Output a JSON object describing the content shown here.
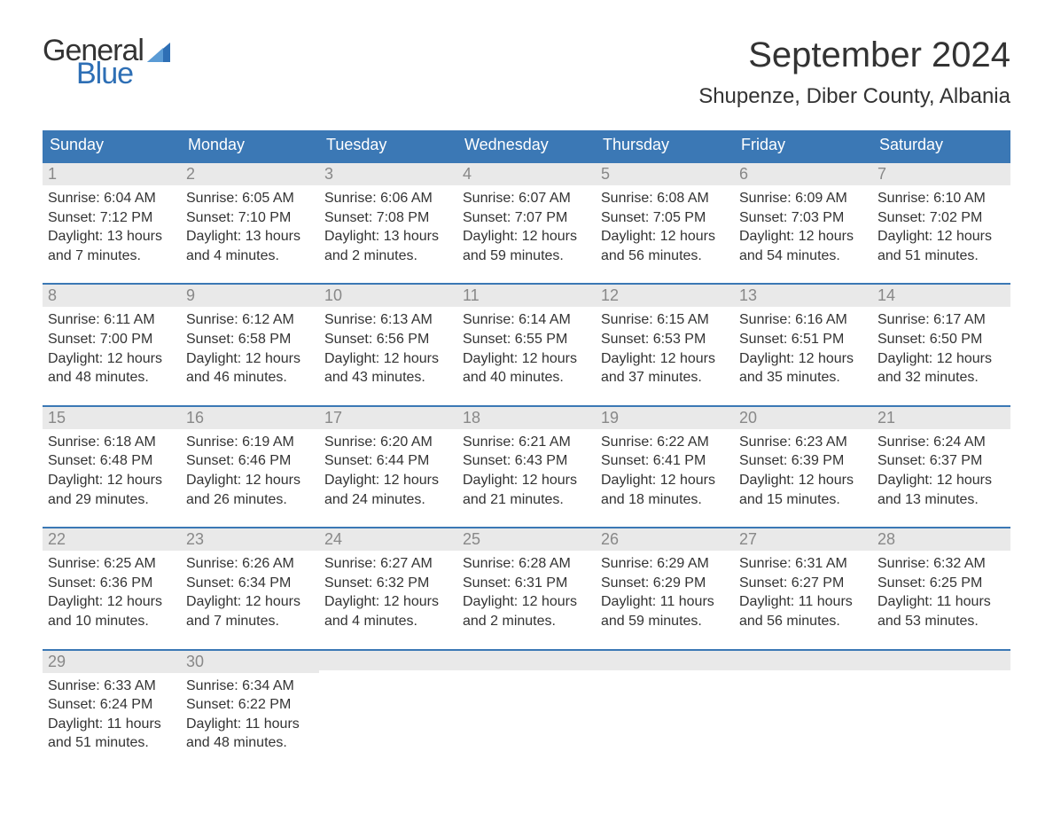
{
  "logo": {
    "text_top": "General",
    "text_bottom": "Blue",
    "flag_color": "#2e6fb5"
  },
  "header": {
    "month_title": "September 2024",
    "location": "Shupenze, Diber County, Albania"
  },
  "colors": {
    "header_bg": "#3b78b5",
    "header_text": "#ffffff",
    "daynum_bg": "#e9e9e9",
    "daynum_text": "#888888",
    "body_text": "#333333",
    "week_border": "#3b78b5",
    "logo_blue": "#2e6fb5",
    "background": "#ffffff"
  },
  "typography": {
    "month_title_fontsize": 40,
    "location_fontsize": 24,
    "dow_fontsize": 18,
    "daynum_fontsize": 18,
    "body_fontsize": 16
  },
  "layout": {
    "columns": 7,
    "cell_padding": 6
  },
  "days_of_week": [
    "Sunday",
    "Monday",
    "Tuesday",
    "Wednesday",
    "Thursday",
    "Friday",
    "Saturday"
  ],
  "weeks": [
    [
      {
        "num": "1",
        "sunrise": "Sunrise: 6:04 AM",
        "sunset": "Sunset: 7:12 PM",
        "dl1": "Daylight: 13 hours",
        "dl2": "and 7 minutes."
      },
      {
        "num": "2",
        "sunrise": "Sunrise: 6:05 AM",
        "sunset": "Sunset: 7:10 PM",
        "dl1": "Daylight: 13 hours",
        "dl2": "and 4 minutes."
      },
      {
        "num": "3",
        "sunrise": "Sunrise: 6:06 AM",
        "sunset": "Sunset: 7:08 PM",
        "dl1": "Daylight: 13 hours",
        "dl2": "and 2 minutes."
      },
      {
        "num": "4",
        "sunrise": "Sunrise: 6:07 AM",
        "sunset": "Sunset: 7:07 PM",
        "dl1": "Daylight: 12 hours",
        "dl2": "and 59 minutes."
      },
      {
        "num": "5",
        "sunrise": "Sunrise: 6:08 AM",
        "sunset": "Sunset: 7:05 PM",
        "dl1": "Daylight: 12 hours",
        "dl2": "and 56 minutes."
      },
      {
        "num": "6",
        "sunrise": "Sunrise: 6:09 AM",
        "sunset": "Sunset: 7:03 PM",
        "dl1": "Daylight: 12 hours",
        "dl2": "and 54 minutes."
      },
      {
        "num": "7",
        "sunrise": "Sunrise: 6:10 AM",
        "sunset": "Sunset: 7:02 PM",
        "dl1": "Daylight: 12 hours",
        "dl2": "and 51 minutes."
      }
    ],
    [
      {
        "num": "8",
        "sunrise": "Sunrise: 6:11 AM",
        "sunset": "Sunset: 7:00 PM",
        "dl1": "Daylight: 12 hours",
        "dl2": "and 48 minutes."
      },
      {
        "num": "9",
        "sunrise": "Sunrise: 6:12 AM",
        "sunset": "Sunset: 6:58 PM",
        "dl1": "Daylight: 12 hours",
        "dl2": "and 46 minutes."
      },
      {
        "num": "10",
        "sunrise": "Sunrise: 6:13 AM",
        "sunset": "Sunset: 6:56 PM",
        "dl1": "Daylight: 12 hours",
        "dl2": "and 43 minutes."
      },
      {
        "num": "11",
        "sunrise": "Sunrise: 6:14 AM",
        "sunset": "Sunset: 6:55 PM",
        "dl1": "Daylight: 12 hours",
        "dl2": "and 40 minutes."
      },
      {
        "num": "12",
        "sunrise": "Sunrise: 6:15 AM",
        "sunset": "Sunset: 6:53 PM",
        "dl1": "Daylight: 12 hours",
        "dl2": "and 37 minutes."
      },
      {
        "num": "13",
        "sunrise": "Sunrise: 6:16 AM",
        "sunset": "Sunset: 6:51 PM",
        "dl1": "Daylight: 12 hours",
        "dl2": "and 35 minutes."
      },
      {
        "num": "14",
        "sunrise": "Sunrise: 6:17 AM",
        "sunset": "Sunset: 6:50 PM",
        "dl1": "Daylight: 12 hours",
        "dl2": "and 32 minutes."
      }
    ],
    [
      {
        "num": "15",
        "sunrise": "Sunrise: 6:18 AM",
        "sunset": "Sunset: 6:48 PM",
        "dl1": "Daylight: 12 hours",
        "dl2": "and 29 minutes."
      },
      {
        "num": "16",
        "sunrise": "Sunrise: 6:19 AM",
        "sunset": "Sunset: 6:46 PM",
        "dl1": "Daylight: 12 hours",
        "dl2": "and 26 minutes."
      },
      {
        "num": "17",
        "sunrise": "Sunrise: 6:20 AM",
        "sunset": "Sunset: 6:44 PM",
        "dl1": "Daylight: 12 hours",
        "dl2": "and 24 minutes."
      },
      {
        "num": "18",
        "sunrise": "Sunrise: 6:21 AM",
        "sunset": "Sunset: 6:43 PM",
        "dl1": "Daylight: 12 hours",
        "dl2": "and 21 minutes."
      },
      {
        "num": "19",
        "sunrise": "Sunrise: 6:22 AM",
        "sunset": "Sunset: 6:41 PM",
        "dl1": "Daylight: 12 hours",
        "dl2": "and 18 minutes."
      },
      {
        "num": "20",
        "sunrise": "Sunrise: 6:23 AM",
        "sunset": "Sunset: 6:39 PM",
        "dl1": "Daylight: 12 hours",
        "dl2": "and 15 minutes."
      },
      {
        "num": "21",
        "sunrise": "Sunrise: 6:24 AM",
        "sunset": "Sunset: 6:37 PM",
        "dl1": "Daylight: 12 hours",
        "dl2": "and 13 minutes."
      }
    ],
    [
      {
        "num": "22",
        "sunrise": "Sunrise: 6:25 AM",
        "sunset": "Sunset: 6:36 PM",
        "dl1": "Daylight: 12 hours",
        "dl2": "and 10 minutes."
      },
      {
        "num": "23",
        "sunrise": "Sunrise: 6:26 AM",
        "sunset": "Sunset: 6:34 PM",
        "dl1": "Daylight: 12 hours",
        "dl2": "and 7 minutes."
      },
      {
        "num": "24",
        "sunrise": "Sunrise: 6:27 AM",
        "sunset": "Sunset: 6:32 PM",
        "dl1": "Daylight: 12 hours",
        "dl2": "and 4 minutes."
      },
      {
        "num": "25",
        "sunrise": "Sunrise: 6:28 AM",
        "sunset": "Sunset: 6:31 PM",
        "dl1": "Daylight: 12 hours",
        "dl2": "and 2 minutes."
      },
      {
        "num": "26",
        "sunrise": "Sunrise: 6:29 AM",
        "sunset": "Sunset: 6:29 PM",
        "dl1": "Daylight: 11 hours",
        "dl2": "and 59 minutes."
      },
      {
        "num": "27",
        "sunrise": "Sunrise: 6:31 AM",
        "sunset": "Sunset: 6:27 PM",
        "dl1": "Daylight: 11 hours",
        "dl2": "and 56 minutes."
      },
      {
        "num": "28",
        "sunrise": "Sunrise: 6:32 AM",
        "sunset": "Sunset: 6:25 PM",
        "dl1": "Daylight: 11 hours",
        "dl2": "and 53 minutes."
      }
    ],
    [
      {
        "num": "29",
        "sunrise": "Sunrise: 6:33 AM",
        "sunset": "Sunset: 6:24 PM",
        "dl1": "Daylight: 11 hours",
        "dl2": "and 51 minutes."
      },
      {
        "num": "30",
        "sunrise": "Sunrise: 6:34 AM",
        "sunset": "Sunset: 6:22 PM",
        "dl1": "Daylight: 11 hours",
        "dl2": "and 48 minutes."
      },
      null,
      null,
      null,
      null,
      null
    ]
  ]
}
